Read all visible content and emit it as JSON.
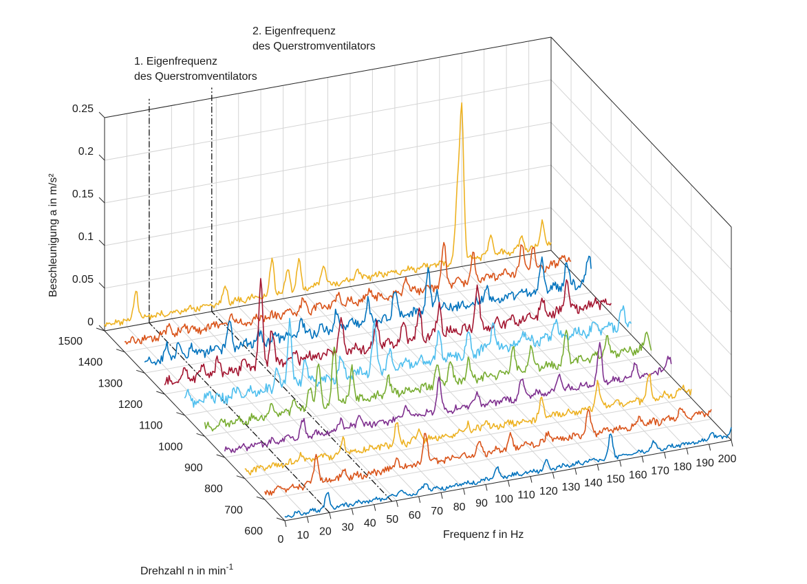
{
  "chart_data": {
    "type": "line",
    "subtype": "waterfall-3d",
    "title": "",
    "xlabel": "Frequenz f in Hz",
    "ylabel": "Drehzahl n in min",
    "ylabel_exponent": "-1",
    "zlabel": "Beschleunigung a in m/s²",
    "xlim": [
      0,
      200
    ],
    "ylim": [
      600,
      1500
    ],
    "zlim": [
      0,
      0.25
    ],
    "x_ticks": [
      "0",
      "10",
      "20",
      "30",
      "40",
      "50",
      "60",
      "70",
      "80",
      "90",
      "100",
      "110",
      "120",
      "130",
      "140",
      "150",
      "160",
      "170",
      "180",
      "190",
      "200"
    ],
    "y_ticks": [
      "600",
      "700",
      "800",
      "900",
      "1000",
      "1100",
      "1200",
      "1300",
      "1400",
      "1500"
    ],
    "z_ticks": [
      "0",
      "0.05",
      "0.1",
      "0.15",
      "0.2",
      "0.25"
    ],
    "grid": true,
    "annotations": [
      {
        "line1": "1. Eigenfrequenz",
        "line2": "des Querstromventilators",
        "x": 20
      },
      {
        "line1": "2. Eigenfrequenz",
        "line2": "des Querstromventilators",
        "x": 48
      }
    ],
    "series": [
      {
        "rpm": 1500,
        "color": "#edb120",
        "base": 0.007,
        "peaks": [
          [
            14,
            0.036
          ],
          [
            54,
            0.022
          ],
          [
            75,
            0.042
          ],
          [
            82,
            0.027
          ],
          [
            87,
            0.033
          ],
          [
            98,
            0.025
          ],
          [
            113,
            0.012
          ],
          [
            160,
            0.178
          ],
          [
            158,
            0.075
          ],
          [
            173,
            0.025
          ],
          [
            187,
            0.015
          ],
          [
            196,
            0.03
          ]
        ]
      },
      {
        "rpm": 1400,
        "color": "#d95319",
        "base": 0.01,
        "peaks": [
          [
            20,
            0.015
          ],
          [
            27,
            0.01
          ],
          [
            41,
            0.006
          ],
          [
            48,
            0.01
          ],
          [
            80,
            0.012
          ],
          [
            96,
            0.012
          ],
          [
            110,
            0.012
          ],
          [
            126,
            0.018
          ],
          [
            143,
            0.052
          ],
          [
            156,
            0.03
          ],
          [
            178,
            0.03
          ],
          [
            183,
            0.025
          ],
          [
            196,
            0.012
          ]
        ]
      },
      {
        "rpm": 1300,
        "color": "#0072bd",
        "base": 0.012,
        "peaks": [
          [
            10,
            0.012
          ],
          [
            15,
            0.015
          ],
          [
            21,
            0.01
          ],
          [
            38,
            0.026
          ],
          [
            51,
            0.009
          ],
          [
            70,
            0.018
          ],
          [
            86,
            0.018
          ],
          [
            100,
            0.022
          ],
          [
            112,
            0.032
          ],
          [
            127,
            0.048
          ],
          [
            131,
            0.024
          ],
          [
            153,
            0.02
          ],
          [
            178,
            0.035
          ],
          [
            189,
            0.028
          ],
          [
            199,
            0.03
          ]
        ]
      },
      {
        "rpm": 1200,
        "color": "#a2142f",
        "base": 0.012,
        "peaks": [
          [
            9,
            0.01
          ],
          [
            17,
            0.012
          ],
          [
            24,
            0.017
          ],
          [
            35,
            0.01
          ],
          [
            43,
            0.097
          ],
          [
            48,
            0.044
          ],
          [
            58,
            0.01
          ],
          [
            79,
            0.04
          ],
          [
            95,
            0.026
          ],
          [
            107,
            0.02
          ],
          [
            114,
            0.03
          ],
          [
            123,
            0.034
          ],
          [
            140,
            0.048
          ],
          [
            169,
            0.02
          ],
          [
            180,
            0.038
          ],
          [
            193,
            0.012
          ]
        ]
      },
      {
        "rpm": 1100,
        "color": "#4dbeee",
        "base": 0.012,
        "peaks": [
          [
            2,
            0.012
          ],
          [
            11,
            0.012
          ],
          [
            24,
            0.01
          ],
          [
            41,
            0.025
          ],
          [
            47,
            0.077
          ],
          [
            54,
            0.03
          ],
          [
            70,
            0.024
          ],
          [
            85,
            0.056
          ],
          [
            92,
            0.016
          ],
          [
            114,
            0.03
          ],
          [
            127,
            0.025
          ],
          [
            138,
            0.03
          ],
          [
            152,
            0.015
          ],
          [
            166,
            0.022
          ],
          [
            184,
            0.01
          ],
          [
            196,
            0.018
          ]
        ]
      },
      {
        "rpm": 1000,
        "color": "#77ac30",
        "base": 0.01,
        "peaks": [
          [
            30,
            0.013
          ],
          [
            40,
            0.015
          ],
          [
            47,
            0.028
          ],
          [
            51,
            0.052
          ],
          [
            58,
            0.068
          ],
          [
            66,
            0.04
          ],
          [
            82,
            0.022
          ],
          [
            104,
            0.025
          ],
          [
            110,
            0.03
          ],
          [
            118,
            0.022
          ],
          [
            138,
            0.03
          ],
          [
            146,
            0.022
          ],
          [
            162,
            0.032
          ],
          [
            180,
            0.022
          ],
          [
            198,
            0.016
          ]
        ]
      },
      {
        "rpm": 900,
        "color": "#7e2f8e",
        "base": 0.008,
        "peaks": [
          [
            35,
            0.018
          ],
          [
            52,
            0.012
          ],
          [
            60,
            0.015
          ],
          [
            81,
            0.015
          ],
          [
            96,
            0.038
          ],
          [
            113,
            0.012
          ],
          [
            133,
            0.02
          ],
          [
            150,
            0.02
          ],
          [
            168,
            0.045
          ],
          [
            184,
            0.015
          ],
          [
            199,
            0.018
          ]
        ]
      },
      {
        "rpm": 800,
        "color": "#edb120",
        "base": 0.008,
        "peaks": [
          [
            25,
            0.008
          ],
          [
            44,
            0.018
          ],
          [
            68,
            0.025
          ],
          [
            78,
            0.012
          ],
          [
            100,
            0.01
          ],
          [
            108,
            0.012
          ],
          [
            133,
            0.022
          ],
          [
            158,
            0.03
          ],
          [
            181,
            0.028
          ],
          [
            197,
            0.006
          ]
        ]
      },
      {
        "rpm": 700,
        "color": "#d95319",
        "base": 0.008,
        "peaks": [
          [
            23,
            0.035
          ],
          [
            36,
            0.01
          ],
          [
            59,
            0.012
          ],
          [
            72,
            0.04
          ],
          [
            96,
            0.012
          ],
          [
            110,
            0.014
          ],
          [
            127,
            0.012
          ],
          [
            145,
            0.028
          ],
          [
            168,
            0.008
          ],
          [
            186,
            0.008
          ]
        ]
      },
      {
        "rpm": 600,
        "color": "#0072bd",
        "base": 0.005,
        "peaks": [
          [
            19,
            0.018
          ],
          [
            52,
            0.008
          ],
          [
            63,
            0.01
          ],
          [
            95,
            0.012
          ],
          [
            117,
            0.01
          ],
          [
            146,
            0.028
          ],
          [
            165,
            0.008
          ],
          [
            191,
            0.01
          ],
          [
            200,
            0.008
          ]
        ]
      }
    ]
  }
}
